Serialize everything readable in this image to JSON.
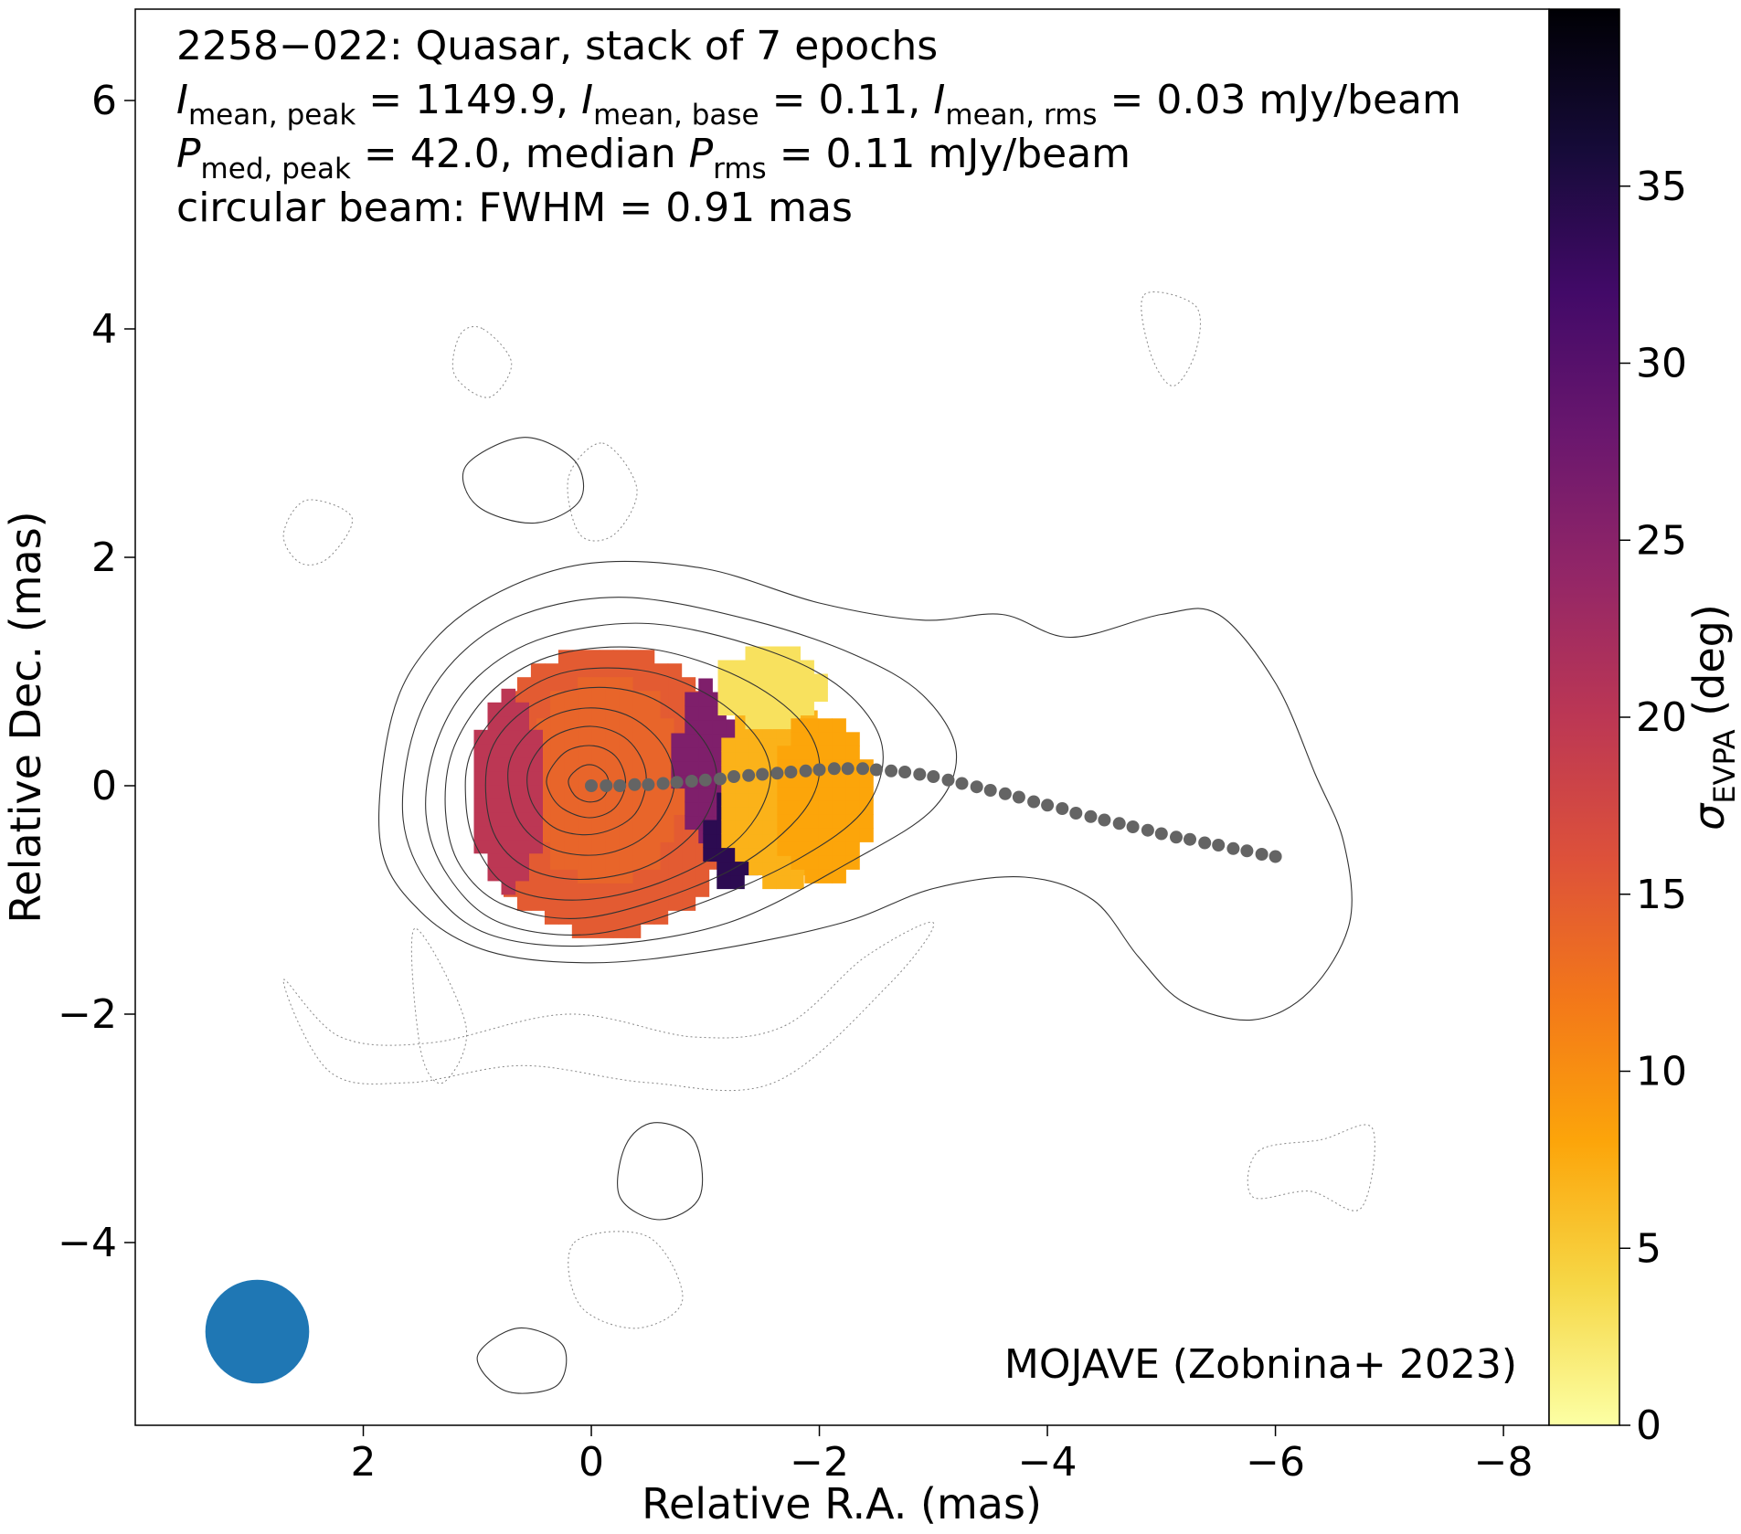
{
  "chart_data": {
    "type": "heatmap",
    "source": "2258−022",
    "annotation_lines": [
      {
        "parts": [
          {
            "t": "2258−022: Quasar, stack of 7 epochs"
          }
        ]
      },
      {
        "parts": [
          {
            "t": "I",
            "it": true
          },
          {
            "t": "mean, peak",
            "sub": true
          },
          {
            "t": " = 1149.9, "
          },
          {
            "t": "I",
            "it": true
          },
          {
            "t": "mean, base",
            "sub": true
          },
          {
            "t": " = 0.11, "
          },
          {
            "t": "I",
            "it": true
          },
          {
            "t": "mean, rms",
            "sub": true
          },
          {
            "t": " = 0.03 mJy/beam"
          }
        ]
      },
      {
        "parts": [
          {
            "t": "P",
            "it": true
          },
          {
            "t": "med, peak",
            "sub": true
          },
          {
            "t": " = 42.0, median "
          },
          {
            "t": "P",
            "it": true
          },
          {
            "t": "rms",
            "sub": true
          },
          {
            "t": " = 0.11 mJy/beam"
          }
        ]
      },
      {
        "parts": [
          {
            "t": "circular beam: FWHM = 0.91 mas"
          }
        ]
      }
    ],
    "credit": "MOJAVE (Zobnina+ 2023)",
    "xlabel": "Relative R.A. (mas)",
    "ylabel": "Relative Dec. (mas)",
    "xlim": [
      4.0,
      -8.4
    ],
    "ylim": [
      -5.6,
      6.8
    ],
    "x_ticks": [
      2,
      0,
      -2,
      -4,
      -6,
      -8
    ],
    "x_tick_labels": [
      "2",
      "0",
      "−2",
      "−4",
      "−6",
      "−8"
    ],
    "y_ticks": [
      6,
      4,
      2,
      0,
      -2,
      -4
    ],
    "y_tick_labels": [
      "6",
      "4",
      "2",
      "0",
      "−2",
      "−4"
    ],
    "colorbar": {
      "label_main": "σ",
      "label_sub": "EVPA",
      "label_units": " (deg)",
      "range": [
        0,
        40
      ],
      "ticks": [
        0,
        5,
        10,
        15,
        20,
        25,
        30,
        35
      ],
      "colormap": "inferno_r",
      "cmap_stops": [
        "#fcffa4",
        "#f6d746",
        "#fca50a",
        "#f37819",
        "#dd513a",
        "#bc3754",
        "#932667",
        "#6a176e",
        "#420a68",
        "#160b39",
        "#000004"
      ]
    },
    "beam": {
      "x": 2.93,
      "y": -4.78,
      "fwhm_mas": 0.91,
      "color": "#1f77b4"
    },
    "ridgeline": {
      "color": "#646464",
      "x": [
        0.0,
        -0.13,
        -0.25,
        -0.38,
        -0.5,
        -0.63,
        -0.75,
        -0.88,
        -1.0,
        -1.13,
        -1.25,
        -1.38,
        -1.5,
        -1.63,
        -1.75,
        -1.88,
        -2.0,
        -2.13,
        -2.25,
        -2.38,
        -2.5,
        -2.63,
        -2.75,
        -2.88,
        -3.0,
        -3.13,
        -3.25,
        -3.38,
        -3.5,
        -3.63,
        -3.75,
        -3.88,
        -4.0,
        -4.13,
        -4.25,
        -4.38,
        -4.5,
        -4.63,
        -4.75,
        -4.88,
        -5.0,
        -5.13,
        -5.25,
        -5.38,
        -5.5,
        -5.63,
        -5.75,
        -5.88,
        -6.0
      ],
      "y": [
        0.0,
        0.0,
        0.0,
        0.01,
        0.01,
        0.02,
        0.03,
        0.04,
        0.05,
        0.06,
        0.08,
        0.09,
        0.1,
        0.11,
        0.12,
        0.13,
        0.14,
        0.15,
        0.15,
        0.15,
        0.14,
        0.13,
        0.12,
        0.1,
        0.08,
        0.05,
        0.02,
        -0.01,
        -0.04,
        -0.07,
        -0.1,
        -0.14,
        -0.17,
        -0.2,
        -0.24,
        -0.27,
        -0.3,
        -0.33,
        -0.36,
        -0.39,
        -0.42,
        -0.45,
        -0.47,
        -0.5,
        -0.52,
        -0.55,
        -0.57,
        -0.6,
        -0.62
      ]
    },
    "polarization_regions": [
      {
        "name": "core",
        "cx": 0.0,
        "cy": -0.05,
        "rx": 1.15,
        "ry": 1.28,
        "evpa_std_deg": 15
      },
      {
        "name": "core-inner",
        "cx": 0.0,
        "cy": 0.05,
        "rx": 0.72,
        "ry": 0.9,
        "evpa_std_deg": 14
      },
      {
        "name": "core-east-edge",
        "cx": 0.85,
        "cy": -0.05,
        "rx": 0.3,
        "ry": 0.9,
        "evpa_std_deg": 20
      },
      {
        "name": "transition-band",
        "cx": -0.9,
        "cy": 0.2,
        "rx": 0.28,
        "ry": 0.7,
        "evpa_std_deg": 26
      },
      {
        "name": "high-dispersion-strip",
        "cx": -1.12,
        "cy": -0.45,
        "rx": 0.22,
        "ry": 0.45,
        "evpa_std_deg": 34
      },
      {
        "name": "jet-base-east",
        "cx": -1.55,
        "cy": -0.05,
        "rx": 0.55,
        "ry": 0.85,
        "evpa_std_deg": 7
      },
      {
        "name": "jet-base-north",
        "cx": -1.45,
        "cy": 0.85,
        "rx": 0.5,
        "ry": 0.35,
        "evpa_std_deg": 3
      },
      {
        "name": "jet-base-west",
        "cx": -1.9,
        "cy": -0.1,
        "rx": 0.45,
        "ry": 0.75,
        "evpa_std_deg": 8
      }
    ],
    "total_intensity_contours": [
      {
        "level": 1,
        "rings": [
          [
            [
              1.75,
              0.6
            ],
            [
              1.4,
              1.25
            ],
            [
              0.8,
              1.7
            ],
            [
              0.0,
              1.95
            ],
            [
              -1.0,
              1.9
            ],
            [
              -2.0,
              1.6
            ],
            [
              -2.9,
              1.45
            ],
            [
              -3.6,
              1.5
            ],
            [
              -4.2,
              1.3
            ],
            [
              -5.0,
              1.5
            ],
            [
              -5.5,
              1.5
            ],
            [
              -6.0,
              0.9
            ],
            [
              -6.35,
              0.1
            ],
            [
              -6.6,
              -0.5
            ],
            [
              -6.65,
              -1.2
            ],
            [
              -6.3,
              -1.8
            ],
            [
              -5.8,
              -2.05
            ],
            [
              -5.2,
              -1.9
            ],
            [
              -4.8,
              -1.5
            ],
            [
              -4.4,
              -1.0
            ],
            [
              -3.8,
              -0.8
            ],
            [
              -3.0,
              -0.9
            ],
            [
              -2.2,
              -1.2
            ],
            [
              -1.0,
              -1.45
            ],
            [
              0.0,
              -1.55
            ],
            [
              0.9,
              -1.45
            ],
            [
              1.5,
              -1.1
            ],
            [
              1.85,
              -0.5
            ]
          ],
          [
            [
              -0.9,
              -3.1
            ],
            [
              -0.95,
              -3.6
            ],
            [
              -0.6,
              -3.8
            ],
            [
              -0.25,
              -3.6
            ],
            [
              -0.3,
              -3.15
            ],
            [
              -0.55,
              -2.95
            ]
          ],
          [
            [
              1.1,
              2.8
            ],
            [
              0.6,
              3.05
            ],
            [
              0.15,
              2.85
            ],
            [
              0.1,
              2.5
            ],
            [
              0.5,
              2.3
            ],
            [
              1.0,
              2.45
            ]
          ],
          [
            [
              1.0,
              -5.0
            ],
            [
              0.75,
              -5.3
            ],
            [
              0.3,
              -5.25
            ],
            [
              0.25,
              -4.9
            ],
            [
              0.65,
              -4.75
            ]
          ]
        ]
      },
      {
        "level": 2,
        "rings": [
          [
            [
              1.55,
              0.5
            ],
            [
              1.2,
              1.1
            ],
            [
              0.6,
              1.5
            ],
            [
              -0.3,
              1.65
            ],
            [
              -1.4,
              1.45
            ],
            [
              -2.3,
              1.15
            ],
            [
              -2.9,
              0.8
            ],
            [
              -3.2,
              0.3
            ],
            [
              -3.0,
              -0.2
            ],
            [
              -2.3,
              -0.65
            ],
            [
              -1.2,
              -1.2
            ],
            [
              0.0,
              -1.4
            ],
            [
              0.9,
              -1.3
            ],
            [
              1.4,
              -0.9
            ],
            [
              1.65,
              -0.3
            ]
          ]
        ]
      },
      {
        "level": 3,
        "rings": [
          [
            [
              1.35,
              0.4
            ],
            [
              1.0,
              0.95
            ],
            [
              0.4,
              1.3
            ],
            [
              -0.5,
              1.42
            ],
            [
              -1.5,
              1.2
            ],
            [
              -2.2,
              0.85
            ],
            [
              -2.55,
              0.35
            ],
            [
              -2.4,
              -0.2
            ],
            [
              -1.8,
              -0.65
            ],
            [
              -0.9,
              -1.05
            ],
            [
              0.0,
              -1.3
            ],
            [
              0.8,
              -1.2
            ],
            [
              1.25,
              -0.8
            ],
            [
              1.45,
              -0.25
            ]
          ]
        ]
      },
      {
        "level": 4,
        "rings": [
          [
            [
              1.2,
              0.35
            ],
            [
              0.85,
              0.85
            ],
            [
              0.3,
              1.15
            ],
            [
              -0.5,
              1.2
            ],
            [
              -1.3,
              0.95
            ],
            [
              -1.85,
              0.55
            ],
            [
              -2.0,
              0.1
            ],
            [
              -1.75,
              -0.35
            ],
            [
              -1.1,
              -0.8
            ],
            [
              0.0,
              -1.15
            ],
            [
              0.75,
              -1.05
            ],
            [
              1.15,
              -0.7
            ],
            [
              1.28,
              -0.2
            ]
          ]
        ]
      },
      {
        "level": 5,
        "rings": [
          [
            [
              1.05,
              0.3
            ],
            [
              0.7,
              0.75
            ],
            [
              0.2,
              1.0
            ],
            [
              -0.5,
              1.0
            ],
            [
              -1.1,
              0.75
            ],
            [
              -1.5,
              0.35
            ],
            [
              -1.55,
              -0.05
            ],
            [
              -1.25,
              -0.5
            ],
            [
              -0.6,
              -0.85
            ],
            [
              0.1,
              -1.0
            ],
            [
              0.7,
              -0.9
            ],
            [
              1.0,
              -0.55
            ],
            [
              1.1,
              -0.15
            ]
          ]
        ]
      },
      {
        "level": 6,
        "rings": [
          [
            [
              0.9,
              0.25
            ],
            [
              0.6,
              0.65
            ],
            [
              0.1,
              0.85
            ],
            [
              -0.45,
              0.8
            ],
            [
              -0.9,
              0.5
            ],
            [
              -1.1,
              0.1
            ],
            [
              -0.95,
              -0.35
            ],
            [
              -0.5,
              -0.7
            ],
            [
              0.1,
              -0.82
            ],
            [
              0.6,
              -0.7
            ],
            [
              0.88,
              -0.35
            ]
          ]
        ]
      },
      {
        "level": 7,
        "rings": [
          [
            [
              0.72,
              0.2
            ],
            [
              0.45,
              0.55
            ],
            [
              0.05,
              0.68
            ],
            [
              -0.35,
              0.6
            ],
            [
              -0.65,
              0.32
            ],
            [
              -0.72,
              -0.05
            ],
            [
              -0.5,
              -0.42
            ],
            [
              -0.1,
              -0.6
            ],
            [
              0.35,
              -0.55
            ],
            [
              0.65,
              -0.28
            ]
          ]
        ]
      },
      {
        "level": 8,
        "rings": [
          [
            [
              0.55,
              0.15
            ],
            [
              0.35,
              0.42
            ],
            [
              0.0,
              0.52
            ],
            [
              -0.32,
              0.4
            ],
            [
              -0.48,
              0.1
            ],
            [
              -0.38,
              -0.25
            ],
            [
              -0.05,
              -0.42
            ],
            [
              0.3,
              -0.38
            ],
            [
              0.52,
              -0.15
            ]
          ]
        ]
      },
      {
        "level": 9,
        "rings": [
          [
            [
              0.38,
              0.1
            ],
            [
              0.22,
              0.3
            ],
            [
              -0.02,
              0.35
            ],
            [
              -0.22,
              0.25
            ],
            [
              -0.3,
              0.02
            ],
            [
              -0.2,
              -0.2
            ],
            [
              0.02,
              -0.28
            ],
            [
              0.25,
              -0.2
            ],
            [
              0.37,
              -0.05
            ]
          ]
        ]
      },
      {
        "level": 10,
        "rings": [
          [
            [
              0.2,
              0.05
            ],
            [
              0.1,
              0.16
            ],
            [
              -0.02,
              0.18
            ],
            [
              -0.13,
              0.1
            ],
            [
              -0.15,
              -0.02
            ],
            [
              -0.08,
              -0.12
            ],
            [
              0.04,
              -0.14
            ],
            [
              0.15,
              -0.08
            ]
          ]
        ]
      }
    ],
    "negative_contours": [
      [
        [
          2.7,
          -1.7
        ],
        [
          2.2,
          -2.2
        ],
        [
          1.4,
          -2.25
        ],
        [
          0.2,
          -2.0
        ],
        [
          -0.9,
          -2.2
        ],
        [
          -1.7,
          -2.1
        ],
        [
          -2.4,
          -1.5
        ],
        [
          -3.0,
          -1.2
        ],
        [
          -2.6,
          -1.75
        ],
        [
          -1.6,
          -2.6
        ],
        [
          -0.5,
          -2.6
        ],
        [
          0.6,
          -2.45
        ],
        [
          1.6,
          -2.6
        ],
        [
          2.3,
          -2.5
        ]
      ],
      [
        [
          2.3,
          2.0
        ],
        [
          2.1,
          2.35
        ],
        [
          2.5,
          2.5
        ],
        [
          2.7,
          2.2
        ],
        [
          2.55,
          1.95
        ]
      ],
      [
        [
          -0.1,
          3.0
        ],
        [
          -0.4,
          2.6
        ],
        [
          -0.2,
          2.2
        ],
        [
          0.1,
          2.2
        ],
        [
          0.2,
          2.7
        ]
      ],
      [
        [
          0.95,
          4.0
        ],
        [
          0.7,
          3.7
        ],
        [
          0.9,
          3.4
        ],
        [
          1.2,
          3.6
        ],
        [
          1.15,
          3.95
        ]
      ],
      [
        [
          -4.85,
          4.3
        ],
        [
          -5.3,
          4.2
        ],
        [
          -5.3,
          3.8
        ],
        [
          -5.1,
          3.5
        ],
        [
          -4.9,
          3.8
        ]
      ],
      [
        [
          -5.85,
          -3.2
        ],
        [
          -6.4,
          -3.1
        ],
        [
          -6.85,
          -3.0
        ],
        [
          -6.75,
          -3.7
        ],
        [
          -6.3,
          -3.55
        ],
        [
          -5.8,
          -3.6
        ]
      ],
      [
        [
          0.15,
          -4.0
        ],
        [
          -0.5,
          -3.95
        ],
        [
          -0.8,
          -4.5
        ],
        [
          -0.4,
          -4.75
        ],
        [
          0.1,
          -4.55
        ]
      ],
      [
        [
          1.55,
          -1.25
        ],
        [
          1.5,
          -2.3
        ],
        [
          1.3,
          -2.6
        ],
        [
          1.1,
          -2.1
        ]
      ]
    ]
  }
}
